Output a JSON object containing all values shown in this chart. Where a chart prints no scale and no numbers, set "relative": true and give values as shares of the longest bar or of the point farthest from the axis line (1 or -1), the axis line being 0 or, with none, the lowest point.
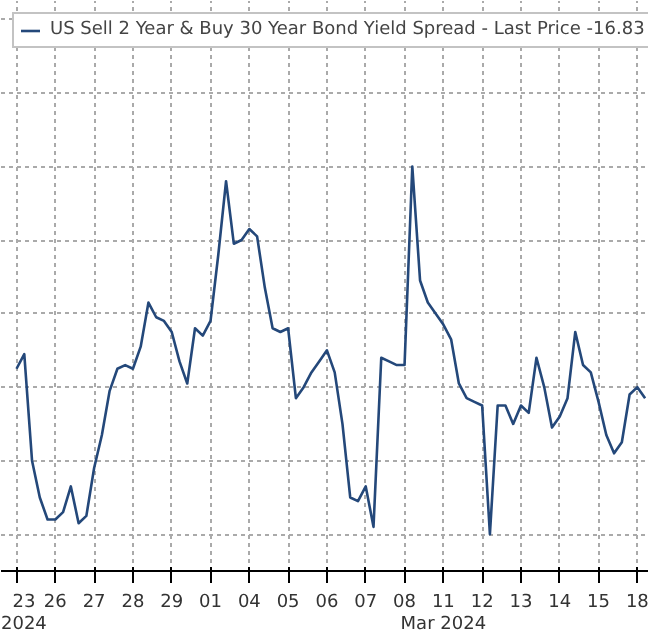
{
  "chart_data": {
    "type": "line",
    "relative": true,
    "grid": true,
    "legend": "top left",
    "marker": "none",
    "line_style": "solid",
    "categories": [
      "23\n2024",
      null,
      null,
      null,
      null,
      "26",
      null,
      null,
      null,
      null,
      "27",
      null,
      null,
      null,
      null,
      "28",
      null,
      null,
      null,
      null,
      "29",
      null,
      null,
      null,
      null,
      "01",
      null,
      null,
      null,
      null,
      "04",
      null,
      null,
      null,
      null,
      "05",
      null,
      null,
      null,
      null,
      "06",
      null,
      null,
      null,
      null,
      "07",
      null,
      null,
      null,
      null,
      "08",
      null,
      null,
      null,
      null,
      "11\nMar 2024",
      null,
      null,
      null,
      null,
      "12",
      null,
      null,
      null,
      null,
      "13",
      null,
      null,
      null,
      null,
      "14",
      null,
      null,
      null,
      null,
      "15",
      null,
      null,
      null,
      null,
      "18",
      null
    ],
    "series": [
      {
        "name": "US Sell 2 Year & Buy 30 Year Bond Yield Spread - Last Price -16.83",
        "color": "#24487a",
        "values": [
          0.45,
          0.49,
          0.2,
          0.1,
          0.04,
          0.04,
          0.06,
          0.13,
          0.03,
          0.05,
          0.18,
          0.27,
          0.39,
          0.45,
          0.46,
          0.45,
          0.51,
          0.63,
          0.59,
          0.58,
          0.55,
          0.47,
          0.41,
          0.56,
          0.54,
          0.58,
          0.76,
          0.96,
          0.79,
          0.8,
          0.83,
          0.81,
          0.67,
          0.56,
          0.55,
          0.56,
          0.37,
          0.4,
          0.44,
          0.47,
          0.5,
          0.44,
          0.3,
          0.1,
          0.09,
          0.13,
          0.02,
          0.48,
          0.47,
          0.46,
          0.46,
          1,
          0.69,
          0.63,
          0.6,
          0.57,
          0.53,
          0.41,
          0.37,
          0.36,
          0.35,
          0,
          0.35,
          0.35,
          0.3,
          0.35,
          0.33,
          0.48,
          0.4,
          0.29,
          0.32,
          0.37,
          0.55,
          0.46,
          0.44,
          0.36,
          0.27,
          0.22,
          0.25,
          0.38,
          0.4,
          0.37
        ]
      }
    ]
  }
}
